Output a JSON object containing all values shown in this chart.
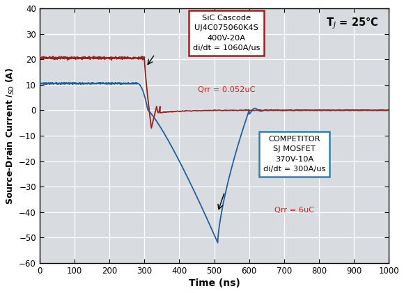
{
  "xlabel": "Time (ns)",
  "ylabel": "Source-Drain Current $I_{SD}$ (A)",
  "xlim": [
    0,
    1000
  ],
  "ylim": [
    -60,
    40
  ],
  "yticks": [
    -60,
    -50,
    -40,
    -30,
    -20,
    -10,
    0,
    10,
    20,
    30,
    40
  ],
  "xticks": [
    0,
    100,
    200,
    300,
    400,
    500,
    600,
    700,
    800,
    900,
    1000
  ],
  "sic_color": "#9B2020",
  "mosfet_color": "#2060A0",
  "background_color": "#D8DCE0",
  "grid_color": "#FFFFFF",
  "tj_label": "T$_J$ = 25°C",
  "sic_box_edgecolor": "#9B2020",
  "mosfet_box_edgecolor": "#3080B0",
  "red_text_color": "#CC2020",
  "sic_main_text": "SiC Cascode\nUJ4C075060K4S\n400V-20A\ndi/dt = 1060A/us",
  "sic_qrr_text": "Qrr = 0.052uC",
  "mosfet_main_text": "COMPETITOR\nSJ MOSFET\n370V-10A\ndi/dt = 300A/us",
  "mosfet_qrr_text": "Qrr = 6uC"
}
